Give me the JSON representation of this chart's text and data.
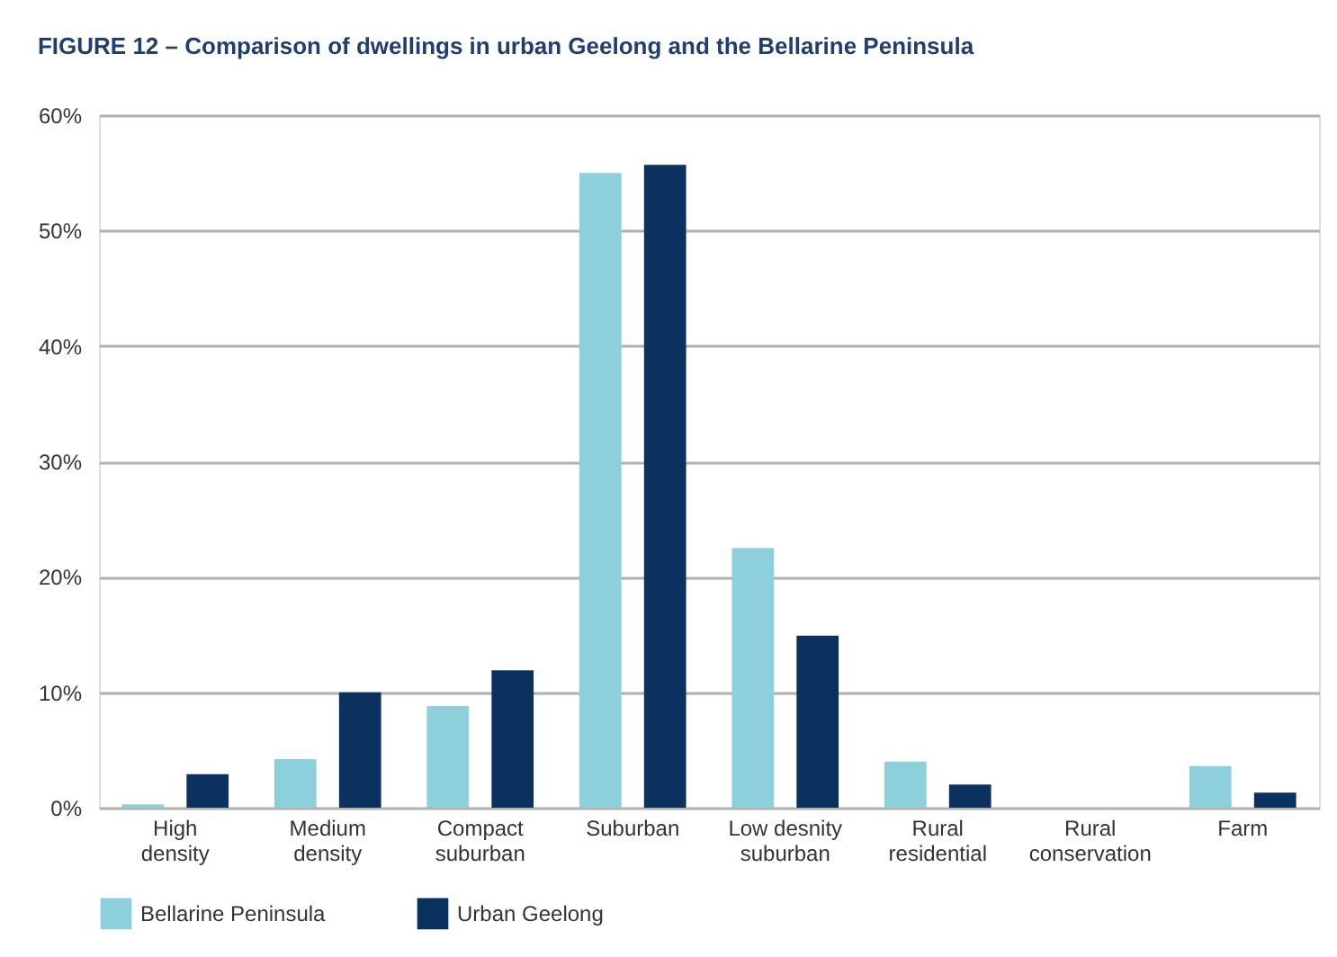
{
  "chart_data": {
    "type": "bar",
    "title": "FIGURE 12 – Comparison of dwellings in urban Geelong and the Bellarine Peninsula",
    "categories": [
      "High density",
      "Medium density",
      "Compact suburban",
      "Suburban",
      "Low desnity suburban",
      "Rural residential",
      "Rural conservation",
      "Farm"
    ],
    "series": [
      {
        "name": "Bellarine Peninsula",
        "color": "#8dd0dc",
        "values": [
          0.3,
          4.2,
          8.8,
          55.0,
          22.5,
          4.0,
          0,
          3.6
        ]
      },
      {
        "name": "Urban Geelong",
        "color": "#0b325f",
        "values": [
          2.9,
          10.0,
          11.9,
          55.7,
          14.9,
          2.0,
          0,
          1.3
        ]
      }
    ],
    "ylim": [
      0,
      60
    ],
    "yticks": [
      {
        "value": 0,
        "label": "0%"
      },
      {
        "value": 10,
        "label": "10%"
      },
      {
        "value": 20,
        "label": "20%"
      },
      {
        "value": 30,
        "label": "30%"
      },
      {
        "value": 40,
        "label": "40%"
      },
      {
        "value": 50,
        "label": "50%"
      },
      {
        "value": 60,
        "label": "60%"
      }
    ],
    "grid": "y",
    "legend": "bottom"
  }
}
